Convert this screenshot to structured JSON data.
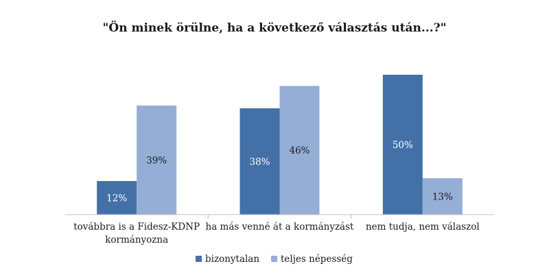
{
  "chart_data": {
    "type": "bar",
    "title": "\"Ön minek örülne, ha a következő választás után...?\"",
    "categories": [
      [
        "továbbra is a Fidesz-KDNP",
        "kormányozna"
      ],
      [
        "ha más venné át a kormányzást"
      ],
      [
        "nem tudja, nem válaszol"
      ]
    ],
    "series": [
      {
        "name": "bizonytalan",
        "values": [
          12,
          38,
          50
        ],
        "labels": [
          "12%",
          "38%",
          "50%"
        ],
        "color": "#4470a8",
        "label_color": "#ffffff"
      },
      {
        "name": "teljes népesség",
        "values": [
          39,
          46,
          13
        ],
        "labels": [
          "39%",
          "46%",
          "13%"
        ],
        "color": "#94aed6",
        "label_color": "#1a1a1a"
      }
    ],
    "ylim": [
      0,
      55
    ],
    "grid": false,
    "legend": "bottom"
  }
}
